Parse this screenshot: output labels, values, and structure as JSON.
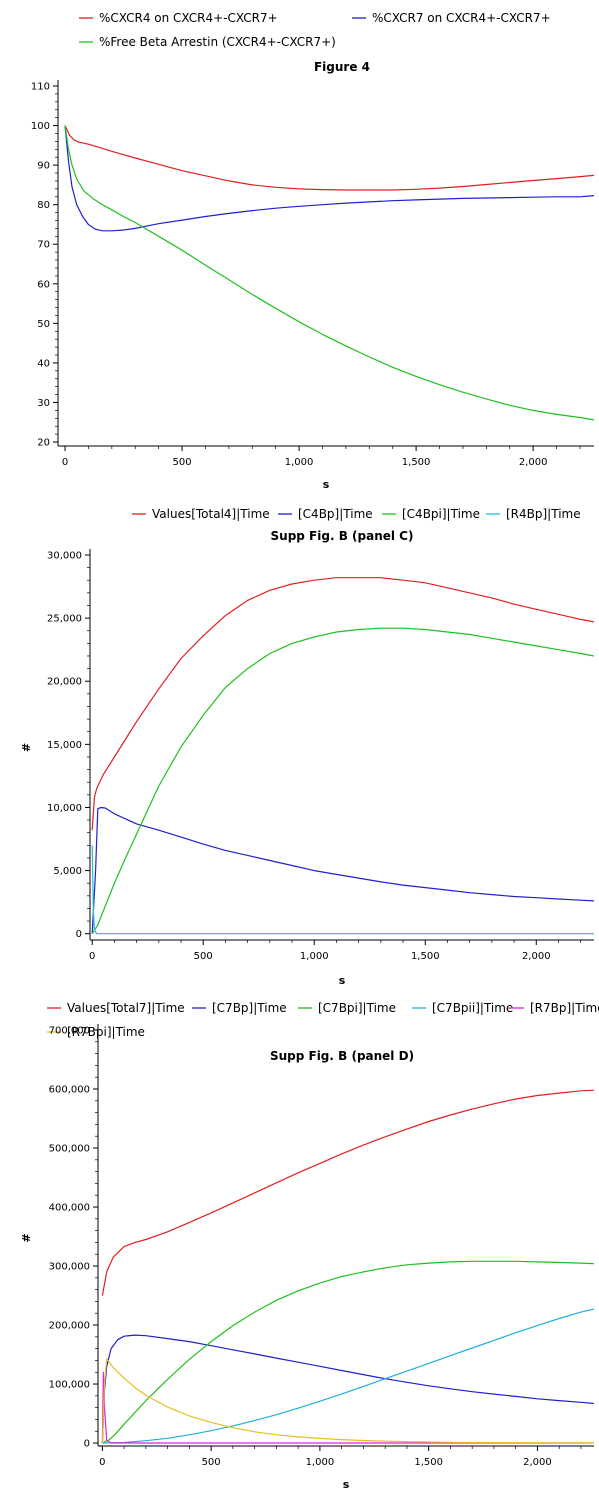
{
  "chart_data": [
    {
      "type": "line",
      "title": "Figure 4",
      "xlabel": "s",
      "ylabel": "",
      "xlim": [
        -30,
        2260
      ],
      "ylim": [
        19,
        110
      ],
      "x_ticks": [
        0,
        500,
        1000,
        1500,
        2000
      ],
      "x_tick_labels": [
        "0",
        "500",
        "1,000",
        "1,500",
        "2,000"
      ],
      "y_ticks": [
        20,
        30,
        40,
        50,
        60,
        70,
        80,
        90,
        100,
        110
      ],
      "y_tick_labels": [
        "20",
        "30",
        "40",
        "50",
        "60",
        "70",
        "80",
        "90",
        "100",
        "110"
      ],
      "series": [
        {
          "name": "%CXCR4 on CXCR4+-CXCR7+",
          "color": "#e02020",
          "x": [
            0,
            20,
            40,
            60,
            100,
            150,
            200,
            300,
            400,
            500,
            600,
            700,
            800,
            900,
            1000,
            1100,
            1200,
            1300,
            1400,
            1500,
            1600,
            1700,
            1800,
            1900,
            2000,
            2100,
            2200,
            2260
          ],
          "y": [
            100,
            97.5,
            96.3,
            95.8,
            95.3,
            94.4,
            93.5,
            91.8,
            90.2,
            88.6,
            87.3,
            86.0,
            85.0,
            84.4,
            84.0,
            83.8,
            83.7,
            83.7,
            83.7,
            83.9,
            84.2,
            84.6,
            85.1,
            85.6,
            86.1,
            86.6,
            87.1,
            87.4
          ]
        },
        {
          "name": "%CXCR7 on CXCR4+-CXCR7+",
          "color": "#2020d0",
          "x": [
            0,
            15,
            30,
            50,
            75,
            100,
            130,
            160,
            200,
            250,
            300,
            400,
            500,
            600,
            700,
            800,
            900,
            1000,
            1100,
            1200,
            1300,
            1400,
            1500,
            1600,
            1700,
            1800,
            1900,
            2000,
            2100,
            2200,
            2260
          ],
          "y": [
            100,
            91,
            84.5,
            80,
            77,
            75,
            73.8,
            73.4,
            73.4,
            73.6,
            74.0,
            75.2,
            76.1,
            77.0,
            77.8,
            78.5,
            79.1,
            79.6,
            80.0,
            80.4,
            80.7,
            81.0,
            81.2,
            81.4,
            81.6,
            81.7,
            81.8,
            81.9,
            82.0,
            82.0,
            82.3
          ]
        },
        {
          "name": "%Free Beta Arrestin (CXCR4+-CXCR7+)",
          "color": "#20c020",
          "x": [
            0,
            15,
            30,
            50,
            80,
            120,
            160,
            200,
            250,
            300,
            400,
            500,
            600,
            700,
            800,
            900,
            1000,
            1100,
            1200,
            1300,
            1400,
            1500,
            1600,
            1700,
            1800,
            1900,
            2000,
            2100,
            2200,
            2260
          ],
          "y": [
            100,
            94,
            90,
            86.5,
            83.5,
            81.5,
            80,
            78.7,
            77,
            75.5,
            72,
            68.5,
            64.7,
            61,
            57.3,
            53.8,
            50.4,
            47.2,
            44.3,
            41.5,
            38.9,
            36.6,
            34.5,
            32.6,
            30.9,
            29.3,
            28.0,
            27.0,
            26.2,
            25.6
          ]
        }
      ]
    },
    {
      "type": "line",
      "title": "Supp Fig. B (panel C)",
      "xlabel": "s",
      "ylabel": "#",
      "xlim": [
        -10,
        2260
      ],
      "ylim": [
        -500,
        30000
      ],
      "x_ticks": [
        0,
        500,
        1000,
        1500,
        2000
      ],
      "x_tick_labels": [
        "0",
        "500",
        "1,000",
        "1,500",
        "2,000"
      ],
      "y_ticks": [
        0,
        5000,
        10000,
        15000,
        20000,
        25000,
        30000
      ],
      "y_tick_labels": [
        "0",
        "5,000",
        "10,000",
        "15,000",
        "20,000",
        "25,000",
        "30,000"
      ],
      "series": [
        {
          "name": "Values[Total4]|Time",
          "color": "#e02020",
          "x": [
            0,
            10,
            20,
            50,
            100,
            200,
            300,
            400,
            500,
            600,
            700,
            800,
            900,
            1000,
            1100,
            1200,
            1300,
            1400,
            1500,
            1600,
            1700,
            1800,
            1900,
            2000,
            2100,
            2200,
            2260
          ],
          "y": [
            8200,
            10800,
            11500,
            12600,
            14000,
            16800,
            19400,
            21800,
            23600,
            25200,
            26400,
            27200,
            27700,
            28000,
            28200,
            28200,
            28200,
            28000,
            27800,
            27400,
            27000,
            26600,
            26100,
            25700,
            25300,
            24900,
            24700
          ]
        },
        {
          "name": "[C4Bp]|Time",
          "color": "#2020d0",
          "x": [
            0,
            15,
            25,
            40,
            60,
            100,
            200,
            300,
            400,
            500,
            600,
            700,
            800,
            900,
            1000,
            1100,
            1200,
            1300,
            1400,
            1500,
            1600,
            1700,
            1800,
            1900,
            2000,
            2100,
            2200,
            2260
          ],
          "y": [
            0,
            5000,
            9900,
            10000,
            9950,
            9500,
            8700,
            8200,
            7650,
            7100,
            6600,
            6200,
            5800,
            5400,
            5000,
            4700,
            4400,
            4100,
            3850,
            3650,
            3450,
            3250,
            3100,
            2950,
            2850,
            2750,
            2650,
            2600
          ]
        },
        {
          "name": "[C4Bpi]|Time",
          "color": "#20c020",
          "x": [
            0,
            25,
            50,
            100,
            150,
            200,
            300,
            400,
            500,
            600,
            700,
            800,
            900,
            1000,
            1100,
            1200,
            1300,
            1400,
            1500,
            1600,
            1700,
            1800,
            1900,
            2000,
            2100,
            2200,
            2260
          ],
          "y": [
            0,
            700,
            1800,
            4000,
            6000,
            7900,
            11700,
            14800,
            17300,
            19500,
            21000,
            22200,
            23000,
            23500,
            23900,
            24100,
            24200,
            24200,
            24100,
            23900,
            23700,
            23400,
            23100,
            22800,
            22500,
            22200,
            22000
          ]
        },
        {
          "name": "[R4Bp]|Time",
          "color": "#20c0d0",
          "x": [
            0,
            5,
            10,
            20,
            500,
            1000,
            1500,
            2000,
            2260
          ],
          "y": [
            7000,
            2000,
            300,
            0,
            0,
            0,
            0,
            0,
            0
          ]
        }
      ]
    },
    {
      "type": "line",
      "title": "Supp Fig. B (panel D)",
      "xlabel": "s",
      "ylabel": "#",
      "xlim": [
        -20,
        2260
      ],
      "ylim": [
        -5000,
        700000
      ],
      "x_ticks": [
        0,
        500,
        1000,
        1500,
        2000
      ],
      "x_tick_labels": [
        "0",
        "500",
        "1,000",
        "1,500",
        "2,000"
      ],
      "y_ticks": [
        0,
        100000,
        200000,
        300000,
        400000,
        500000,
        600000,
        700000
      ],
      "y_tick_labels": [
        "0",
        "100,000",
        "200,000",
        "300,000",
        "400,000",
        "500,000",
        "600,000",
        "700,000"
      ],
      "series": [
        {
          "name": "Values[Total7]|Time",
          "color": "#e02020",
          "x": [
            0,
            20,
            50,
            100,
            150,
            200,
            300,
            400,
            500,
            600,
            700,
            800,
            900,
            1000,
            1100,
            1200,
            1300,
            1400,
            1500,
            1600,
            1700,
            1800,
            1900,
            2000,
            2100,
            2200,
            2260
          ],
          "y": [
            250000,
            290000,
            315000,
            333000,
            340000,
            345000,
            358000,
            374000,
            390000,
            407000,
            424000,
            441000,
            458000,
            474000,
            490000,
            505000,
            519000,
            532000,
            545000,
            556000,
            566000,
            575000,
            583000,
            589000,
            593000,
            597000,
            598000
          ]
        },
        {
          "name": "[C7Bp]|Time",
          "color": "#2020d0",
          "x": [
            0,
            10,
            20,
            40,
            70,
            100,
            150,
            200,
            300,
            400,
            500,
            600,
            700,
            800,
            900,
            1000,
            1100,
            1200,
            1300,
            1400,
            1500,
            1600,
            1700,
            1800,
            1900,
            2000,
            2100,
            2200,
            2260
          ],
          "y": [
            0,
            90000,
            130000,
            160000,
            175000,
            181000,
            183000,
            182000,
            177000,
            172000,
            165000,
            158000,
            151000,
            144000,
            137000,
            130000,
            123000,
            116000,
            109000,
            103000,
            97000,
            92000,
            87000,
            83000,
            79000,
            75000,
            72000,
            69000,
            67000
          ]
        },
        {
          "name": "[C7Bpi]|Time",
          "color": "#20c020",
          "x": [
            0,
            30,
            60,
            100,
            200,
            300,
            400,
            500,
            600,
            700,
            800,
            900,
            1000,
            1100,
            1200,
            1300,
            1400,
            1500,
            1600,
            1700,
            1800,
            1900,
            2000,
            2100,
            2200,
            2260
          ],
          "y": [
            0,
            5000,
            15000,
            32000,
            72000,
            108000,
            142000,
            172000,
            199000,
            222000,
            242000,
            258000,
            271000,
            282000,
            290000,
            297000,
            302000,
            305000,
            307000,
            308000,
            308000,
            308000,
            307000,
            306000,
            305000,
            304000
          ]
        },
        {
          "name": "[C7Bpii]|Time",
          "color": "#20b0d8",
          "x": [
            0,
            100,
            200,
            300,
            400,
            500,
            600,
            700,
            800,
            900,
            1000,
            1100,
            1200,
            1300,
            1400,
            1500,
            1600,
            1700,
            1800,
            1900,
            2000,
            2100,
            2200,
            2260
          ],
          "y": [
            0,
            1000,
            4000,
            8000,
            14000,
            21000,
            29000,
            38000,
            48000,
            59000,
            71000,
            83000,
            96000,
            109000,
            122000,
            135000,
            148000,
            161000,
            174000,
            187000,
            199000,
            211000,
            222000,
            227000
          ]
        },
        {
          "name": "[R7Bp]|Time",
          "color": "#e020e0",
          "x": [
            0,
            5,
            10,
            20,
            40,
            500,
            1000,
            1500,
            2000,
            2260
          ],
          "y": [
            0,
            120000,
            60000,
            5000,
            0,
            0,
            0,
            0,
            0,
            0
          ]
        },
        {
          "name": "[R7Bpi]|Time",
          "color": "#e8c020",
          "x": [
            0,
            10,
            20,
            50,
            100,
            150,
            200,
            300,
            400,
            500,
            600,
            700,
            800,
            900,
            1000,
            1100,
            1200,
            1300,
            1400,
            1500,
            1600,
            1800,
            2000,
            2260
          ],
          "y": [
            0,
            100000,
            143000,
            128000,
            110000,
            94000,
            81000,
            61000,
            46000,
            35000,
            26000,
            19000,
            14000,
            10500,
            7800,
            5800,
            4300,
            3200,
            2400,
            1800,
            1300,
            700,
            400,
            200
          ]
        }
      ]
    }
  ]
}
